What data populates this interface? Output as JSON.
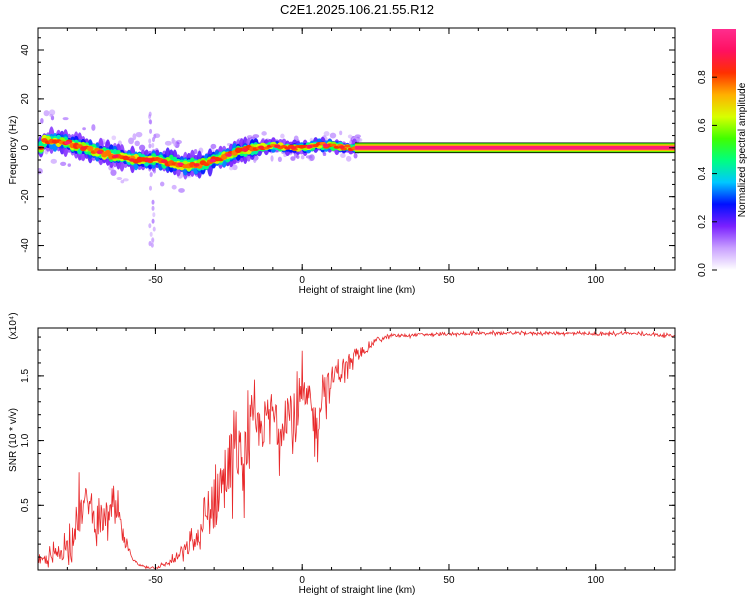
{
  "figure": {
    "title": "C2E1.2025.106.21.55.R12"
  },
  "chart_data": [
    {
      "type": "heatmap",
      "title": "C2E1.2025.106.21.55.R12",
      "xlabel": "Height of straight line (km)",
      "ylabel": "Frequency (Hz)",
      "xlim": [
        -90,
        127
      ],
      "ylim": [
        -50,
        49
      ],
      "x_ticks": [
        -50,
        0,
        50,
        100
      ],
      "y_ticks": [
        -40,
        -20,
        0,
        20,
        40
      ],
      "colorbar": {
        "label": "Normalized spectral amplitude",
        "range": [
          0,
          1
        ],
        "ticks": [
          0.0,
          0.2,
          0.4,
          0.6,
          0.8
        ],
        "colormap": [
          "#ffffff",
          "#c9a0ff",
          "#7a20ff",
          "#0010ff",
          "#00c8ff",
          "#00ff80",
          "#40ff00",
          "#d8ff00",
          "#ffb000",
          "#ff3000",
          "#ff1060",
          "#ff2d8e"
        ]
      },
      "ridge": {
        "description_points_x": [
          -88,
          -80,
          -72,
          -65,
          -58,
          -50,
          -45,
          -40,
          -35,
          -30,
          -25,
          -20,
          -15,
          -10,
          -5,
          0,
          5,
          10,
          15,
          20,
          127
        ],
        "description_points_y": [
          3,
          2,
          -1,
          -3,
          -5,
          -5,
          -6,
          -7,
          -7,
          -5,
          -3,
          -1,
          0,
          1,
          0,
          0,
          1,
          1,
          0,
          0,
          0
        ],
        "flat_line_start_x": 18,
        "flat_line_value": 0,
        "flat_line_band_halfwidth": 2
      }
    },
    {
      "type": "line",
      "title": "",
      "xlabel": "Height of straight line (km)",
      "ylabel": "SNR (10 * v/v)",
      "y_multiplier_label": "(x10⁴)",
      "xlim": [
        -90,
        127
      ],
      "ylim": [
        0,
        1.87
      ],
      "x_ticks": [
        -50,
        0,
        50,
        100
      ],
      "y_ticks": [
        0.5,
        1.0,
        1.5
      ],
      "color": "#e8282a",
      "series": [
        {
          "x": [
            -90,
            -85,
            -80,
            -76,
            -73,
            -70,
            -66,
            -63,
            -60,
            -56,
            -52,
            -50,
            -48,
            -45,
            -42,
            -38,
            -35,
            -33,
            -31,
            -29,
            -27,
            -25,
            -22,
            -20,
            -18,
            -15,
            -12,
            -10,
            -8,
            -5,
            -3,
            0,
            3,
            5,
            7,
            9,
            12,
            15,
            18,
            20,
            23,
            25,
            28,
            30,
            35,
            40,
            50,
            60,
            70,
            80,
            90,
            100,
            110,
            120,
            127
          ],
          "y": [
            0.06,
            0.1,
            0.18,
            0.42,
            0.55,
            0.33,
            0.44,
            0.45,
            0.18,
            0.04,
            0.02,
            0.02,
            0.03,
            0.06,
            0.11,
            0.19,
            0.24,
            0.35,
            0.5,
            0.6,
            0.68,
            0.85,
            0.9,
            0.85,
            1.08,
            1.08,
            1.15,
            1.22,
            1.1,
            1.25,
            1.05,
            1.35,
            1.25,
            1.1,
            1.43,
            1.4,
            1.55,
            1.58,
            1.62,
            1.67,
            1.73,
            1.78,
            1.79,
            1.81,
            1.81,
            1.82,
            1.82,
            1.83,
            1.83,
            1.83,
            1.83,
            1.82,
            1.83,
            1.82,
            1.81
          ],
          "noise_amplitude": [
            0.05,
            0.12,
            0.2,
            0.35,
            0.25,
            0.2,
            0.25,
            0.2,
            0.08,
            0.02,
            0.02,
            0.02,
            0.03,
            0.05,
            0.1,
            0.15,
            0.2,
            0.35,
            0.55,
            0.6,
            0.55,
            0.5,
            0.45,
            0.5,
            0.45,
            0.4,
            0.4,
            0.45,
            0.45,
            0.4,
            0.4,
            0.35,
            0.3,
            0.35,
            0.3,
            0.3,
            0.2,
            0.15,
            0.1,
            0.06,
            0.04,
            0.03,
            0.03,
            0.02,
            0.02,
            0.02,
            0.02,
            0.02,
            0.02,
            0.02,
            0.02,
            0.02,
            0.02,
            0.02,
            0.02
          ]
        }
      ]
    }
  ]
}
